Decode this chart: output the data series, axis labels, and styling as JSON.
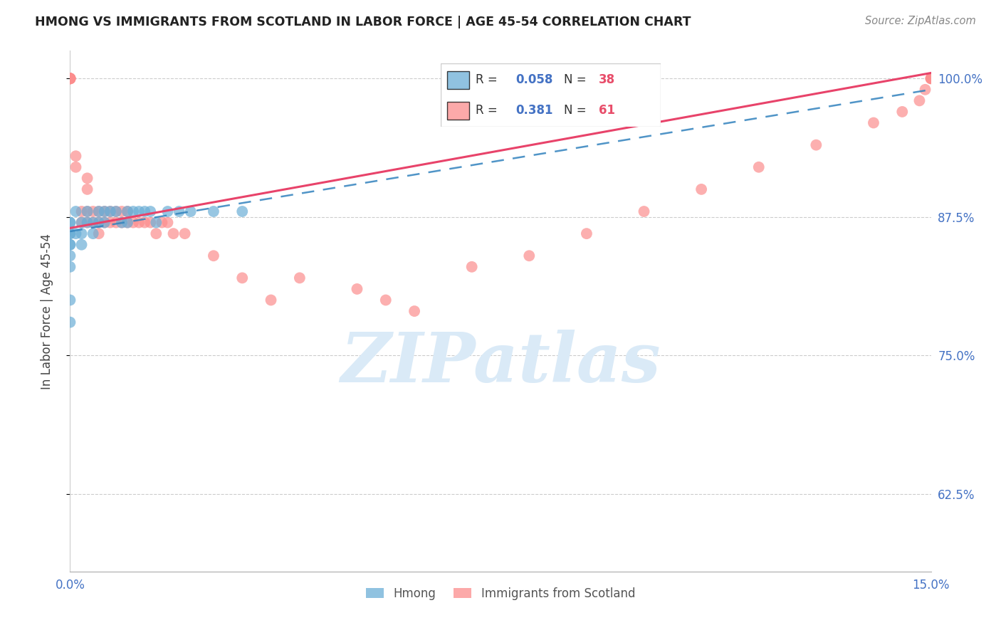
{
  "title": "HMONG VS IMMIGRANTS FROM SCOTLAND IN LABOR FORCE | AGE 45-54 CORRELATION CHART",
  "source": "Source: ZipAtlas.com",
  "ylabel": "In Labor Force | Age 45-54",
  "xlim": [
    0.0,
    0.15
  ],
  "ylim": [
    0.555,
    1.025
  ],
  "ytick_labels": [
    "62.5%",
    "75.0%",
    "87.5%",
    "100.0%"
  ],
  "ytick_values": [
    0.625,
    0.75,
    0.875,
    1.0
  ],
  "hmong_R": 0.058,
  "hmong_N": 38,
  "scotland_R": 0.381,
  "scotland_N": 61,
  "hmong_color": "#6baed6",
  "scotland_color": "#fc8d8d",
  "hmong_line_color": "#3182bd",
  "scotland_line_color": "#e8436a",
  "watermark_color": "#daeaf7",
  "legend_label_1": "Hmong",
  "legend_label_2": "Immigrants from Scotland",
  "hmong_x": [
    0.0,
    0.0,
    0.0,
    0.0,
    0.0,
    0.0,
    0.0,
    0.0,
    0.0,
    0.0,
    0.001,
    0.001,
    0.002,
    0.002,
    0.002,
    0.003,
    0.003,
    0.004,
    0.004,
    0.005,
    0.005,
    0.006,
    0.006,
    0.007,
    0.008,
    0.009,
    0.01,
    0.01,
    0.011,
    0.012,
    0.013,
    0.014,
    0.015,
    0.017,
    0.019,
    0.021,
    0.025,
    0.03
  ],
  "hmong_y": [
    0.87,
    0.87,
    0.86,
    0.86,
    0.85,
    0.85,
    0.84,
    0.83,
    0.8,
    0.78,
    0.88,
    0.86,
    0.87,
    0.86,
    0.85,
    0.88,
    0.87,
    0.87,
    0.86,
    0.88,
    0.87,
    0.88,
    0.87,
    0.88,
    0.88,
    0.87,
    0.88,
    0.87,
    0.88,
    0.88,
    0.88,
    0.88,
    0.87,
    0.88,
    0.88,
    0.88,
    0.88,
    0.88
  ],
  "scotland_x": [
    0.0,
    0.0,
    0.0,
    0.0,
    0.0,
    0.0,
    0.0,
    0.0,
    0.001,
    0.001,
    0.002,
    0.002,
    0.003,
    0.003,
    0.003,
    0.003,
    0.004,
    0.004,
    0.005,
    0.005,
    0.005,
    0.006,
    0.006,
    0.007,
    0.007,
    0.008,
    0.008,
    0.009,
    0.009,
    0.01,
    0.01,
    0.011,
    0.012,
    0.013,
    0.014,
    0.015,
    0.016,
    0.017,
    0.018,
    0.02,
    0.025,
    0.03,
    0.035,
    0.04,
    0.05,
    0.055,
    0.06,
    0.07,
    0.08,
    0.09,
    0.1,
    0.11,
    0.12,
    0.13,
    0.14,
    0.145,
    0.148,
    0.149,
    0.15,
    0.15,
    0.15
  ],
  "scotland_y": [
    1.0,
    1.0,
    1.0,
    1.0,
    1.0,
    1.0,
    1.0,
    1.0,
    0.93,
    0.92,
    0.88,
    0.87,
    0.91,
    0.9,
    0.88,
    0.87,
    0.88,
    0.87,
    0.88,
    0.87,
    0.86,
    0.88,
    0.87,
    0.88,
    0.87,
    0.88,
    0.87,
    0.88,
    0.87,
    0.88,
    0.87,
    0.87,
    0.87,
    0.87,
    0.87,
    0.86,
    0.87,
    0.87,
    0.86,
    0.86,
    0.84,
    0.82,
    0.8,
    0.82,
    0.81,
    0.8,
    0.79,
    0.83,
    0.84,
    0.86,
    0.88,
    0.9,
    0.92,
    0.94,
    0.96,
    0.97,
    0.98,
    0.99,
    1.0,
    1.0,
    1.0
  ]
}
